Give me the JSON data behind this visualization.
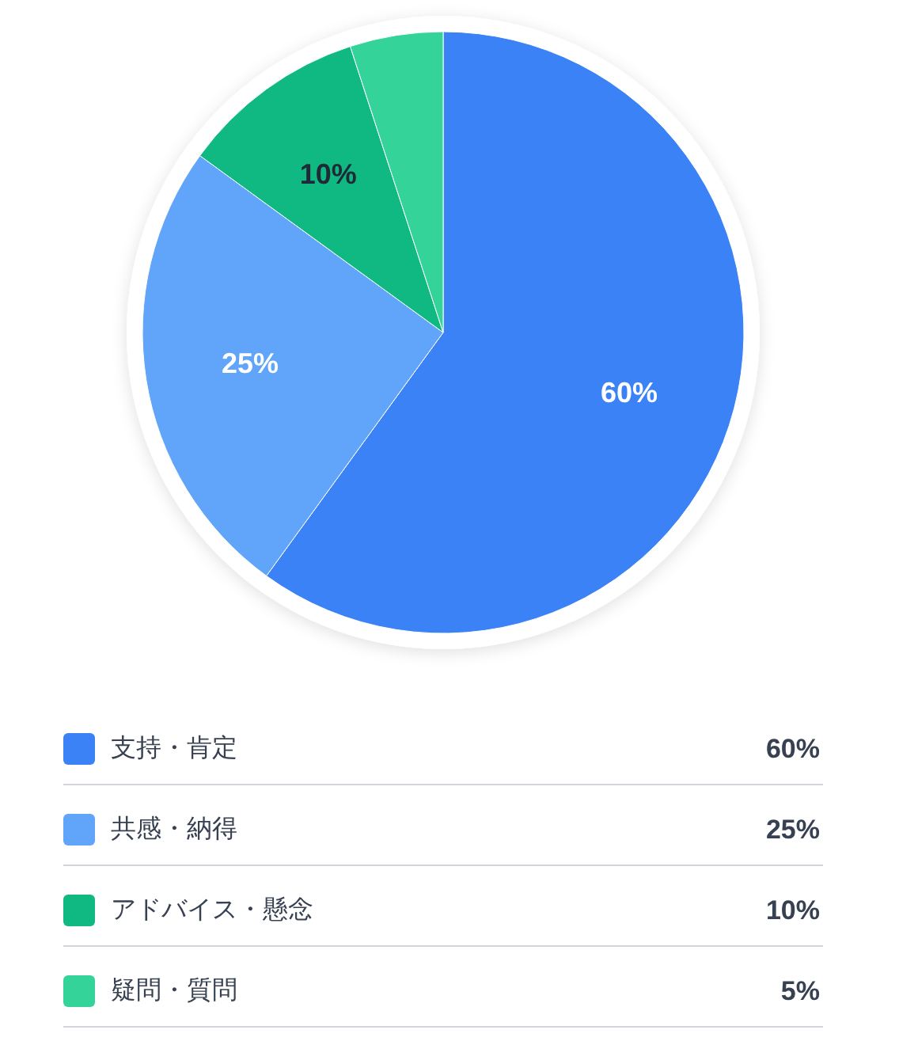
{
  "chart_data": {
    "type": "pie",
    "categories": [
      "支持・肯定",
      "共感・納得",
      "アドバイス・懸念",
      "疑問・質問"
    ],
    "values": [
      60,
      25,
      10,
      5
    ],
    "colors": [
      "#3b82f6",
      "#60a5fa",
      "#10b981",
      "#34d399"
    ],
    "value_labels": [
      "60%",
      "25%",
      "10%",
      "5%"
    ],
    "legend": "bottom"
  }
}
